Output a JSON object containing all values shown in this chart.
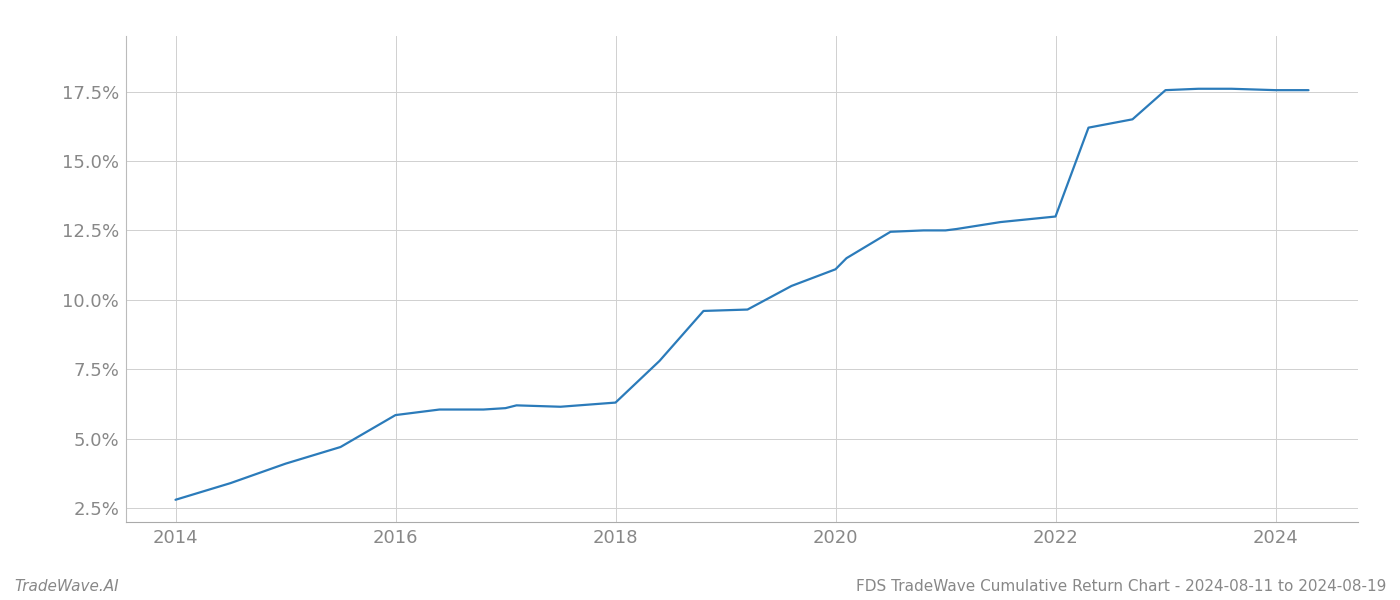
{
  "x_years": [
    2014.0,
    2014.5,
    2015.0,
    2015.5,
    2016.0,
    2016.4,
    2016.8,
    2017.0,
    2017.1,
    2017.5,
    2018.0,
    2018.4,
    2018.8,
    2019.2,
    2019.6,
    2020.0,
    2020.1,
    2020.5,
    2020.8,
    2021.0,
    2021.1,
    2021.5,
    2022.0,
    2022.3,
    2022.7,
    2023.0,
    2023.3,
    2023.6,
    2024.0,
    2024.3
  ],
  "y_values": [
    2.8,
    3.4,
    4.1,
    4.7,
    5.85,
    6.05,
    6.05,
    6.1,
    6.2,
    6.15,
    6.3,
    7.8,
    9.6,
    9.65,
    10.5,
    11.1,
    11.5,
    12.45,
    12.5,
    12.5,
    12.55,
    12.8,
    13.0,
    16.2,
    16.5,
    17.55,
    17.6,
    17.6,
    17.55,
    17.55
  ],
  "line_color": "#2b7bba",
  "line_width": 1.6,
  "background_color": "#ffffff",
  "grid_color": "#d0d0d0",
  "tick_color": "#888888",
  "xlim": [
    2013.55,
    2024.75
  ],
  "ylim": [
    2.0,
    19.5
  ],
  "yticks": [
    2.5,
    5.0,
    7.5,
    10.0,
    12.5,
    15.0,
    17.5
  ],
  "xticks": [
    2014,
    2016,
    2018,
    2020,
    2022,
    2024
  ],
  "footer_left": "TradeWave.AI",
  "footer_right": "FDS TradeWave Cumulative Return Chart - 2024-08-11 to 2024-08-19",
  "footer_color": "#888888",
  "footer_fontsize": 11,
  "tick_fontsize": 13
}
